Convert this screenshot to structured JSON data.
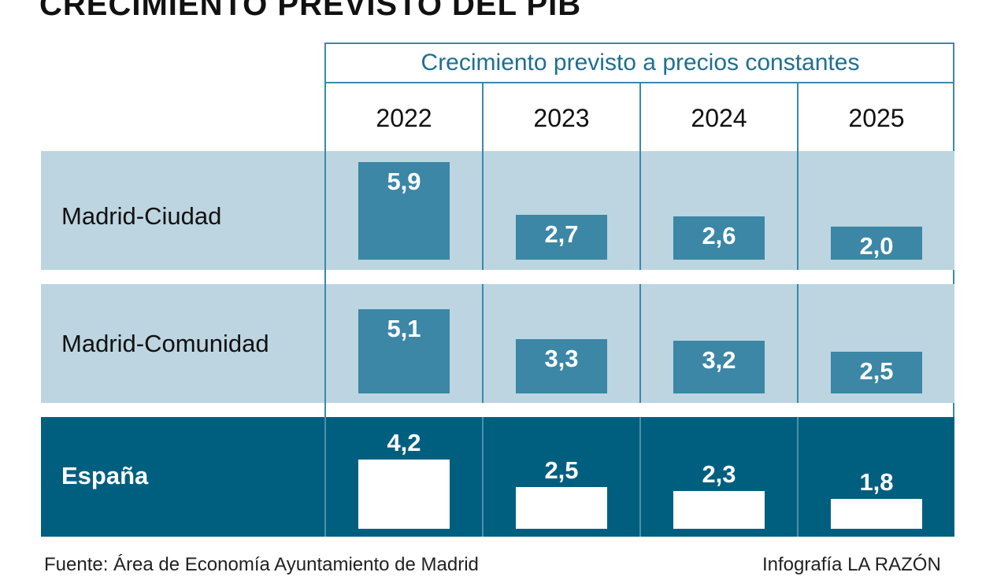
{
  "title": "CRECIMIENTO PREVISTO DEL PIB",
  "subtitle": "Crecimiento previsto a precios constantes",
  "source": "Fuente: Área de Economía Ayuntamiento de Madrid",
  "credit": "Infografía LA RAZÓN",
  "colors": {
    "light_band": "#bcd5e1",
    "dark_band": "#005f7f",
    "bar_teal": "#3c86a6",
    "bar_white": "#ffffff",
    "accent": "#1f6f8f"
  },
  "chart_data": {
    "type": "table",
    "title": "CRECIMIENTO PREVISTO DEL PIB",
    "subtitle": "Crecimiento previsto a precios constantes",
    "columns": [
      "2022",
      "2023",
      "2024",
      "2025"
    ],
    "rows": [
      {
        "name": "Madrid-Ciudad",
        "values": [
          5.9,
          2.7,
          2.6,
          2.0
        ],
        "labels": [
          "5,9",
          "2,7",
          "2,6",
          "2,0"
        ]
      },
      {
        "name": "Madrid-Comunidad",
        "values": [
          5.1,
          3.3,
          3.2,
          2.5
        ],
        "labels": [
          "5,1",
          "3,3",
          "3,2",
          "2,5"
        ]
      },
      {
        "name": "España",
        "values": [
          4.2,
          2.5,
          2.3,
          1.8
        ],
        "labels": [
          "4,2",
          "2,5",
          "2,3",
          "1,8"
        ]
      }
    ]
  }
}
